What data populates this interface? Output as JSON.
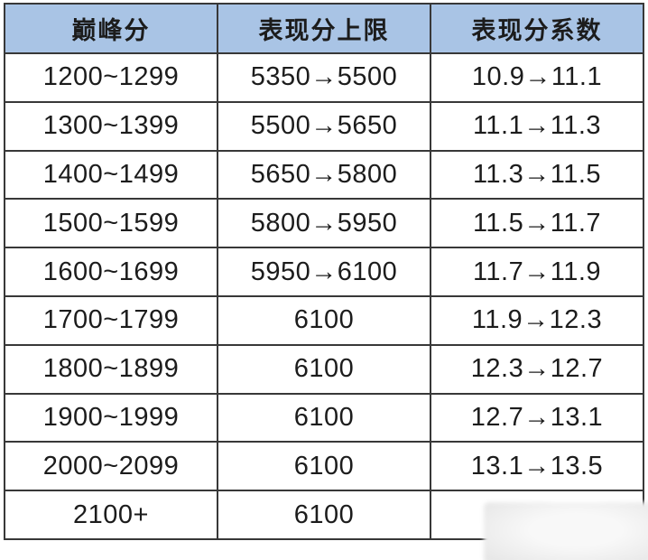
{
  "table": {
    "headers": [
      "巅峰分",
      "表现分上限",
      "表现分系数"
    ],
    "rows": [
      [
        "1200~1299",
        "5350→5500",
        "10.9→11.1"
      ],
      [
        "1300~1399",
        "5500→5650",
        "11.1→11.3"
      ],
      [
        "1400~1499",
        "5650→5800",
        "11.3→11.5"
      ],
      [
        "1500~1599",
        "5800→5950",
        "11.5→11.7"
      ],
      [
        "1600~1699",
        "5950→6100",
        "11.7→11.9"
      ],
      [
        "1700~1799",
        "6100",
        "11.9→12.3"
      ],
      [
        "1800~1899",
        "6100",
        "12.3→12.7"
      ],
      [
        "1900~1999",
        "6100",
        "12.7→13.1"
      ],
      [
        "2000~2099",
        "6100",
        "13.1→13.5"
      ],
      [
        "2100+",
        "6100",
        ""
      ]
    ]
  },
  "colors": {
    "header_bg": "#a9c4e5",
    "border": "#383838",
    "text": "#1c1c1c",
    "watermark_box": "#ededed",
    "page_bg": "#ffffff"
  }
}
